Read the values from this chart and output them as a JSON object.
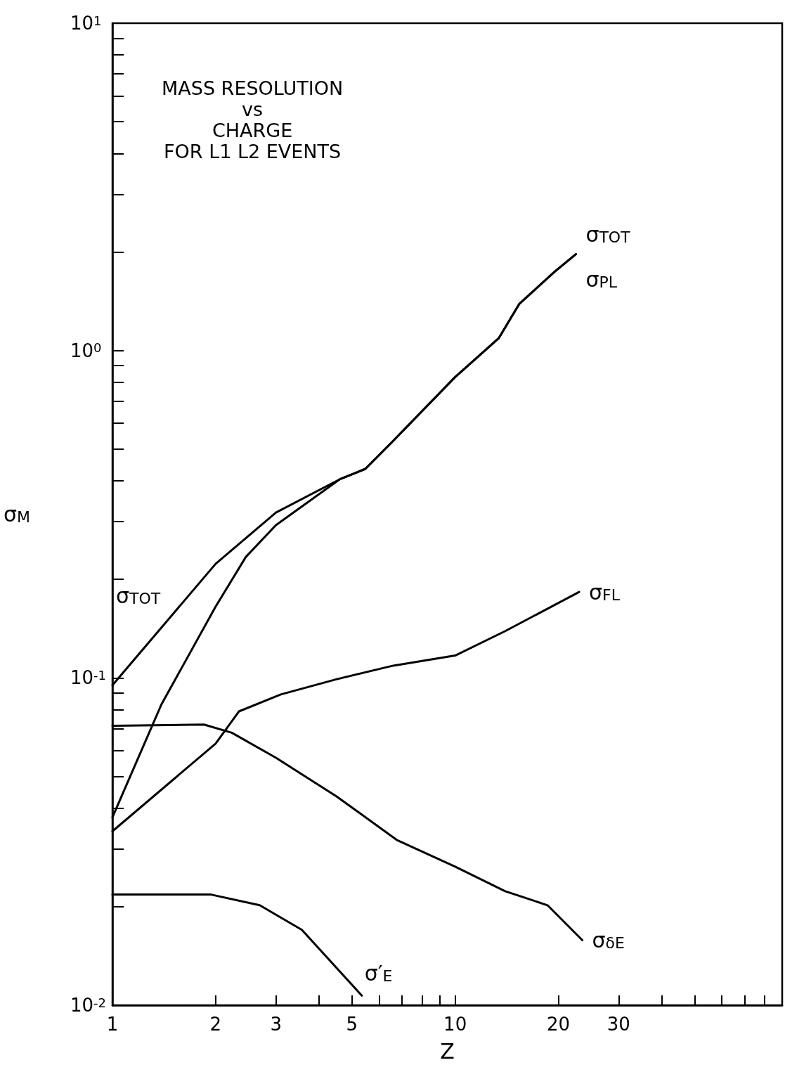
{
  "chart_data": {
    "type": "line",
    "title": "MASS RESOLUTION\nvs\nCHARGE\nFOR L1 L2 EVENTS",
    "xlabel": "Z",
    "ylabel": "σ$_{M}$",
    "log": "xy",
    "grid": false,
    "legend": false,
    "marker": "none",
    "line_style": "solid",
    "xlim": [
      1,
      90
    ],
    "ylim": [
      0.01,
      10
    ],
    "xticks": [
      1,
      2,
      3,
      {
        "value": 4,
        "label": null
      },
      5,
      {
        "value": 6,
        "label": null
      },
      {
        "value": 7,
        "label": null
      },
      {
        "value": 8,
        "label": null
      },
      {
        "value": 9,
        "label": null
      },
      10,
      20,
      30,
      {
        "value": 40,
        "label": null
      },
      {
        "value": 50,
        "label": null
      },
      {
        "value": 60,
        "label": null
      },
      {
        "value": 70,
        "label": null
      },
      {
        "value": 80,
        "label": null
      },
      {
        "value": 90,
        "label": null
      }
    ],
    "yticks": [
      {
        "value": 0.01,
        "label": "10$^{-2}$"
      },
      {
        "value": 0.02,
        "label": null
      },
      {
        "value": 0.03,
        "label": null
      },
      {
        "value": 0.04,
        "label": null
      },
      {
        "value": 0.05,
        "label": null
      },
      {
        "value": 0.06,
        "label": null
      },
      {
        "value": 0.07,
        "label": null
      },
      {
        "value": 0.08,
        "label": null
      },
      {
        "value": 0.09,
        "label": null
      },
      {
        "value": 0.1,
        "label": "10$^{-1}$"
      },
      {
        "value": 0.2,
        "label": null
      },
      {
        "value": 0.3,
        "label": null
      },
      {
        "value": 0.4,
        "label": null
      },
      {
        "value": 0.5,
        "label": null
      },
      {
        "value": 0.6,
        "label": null
      },
      {
        "value": 0.7,
        "label": null
      },
      {
        "value": 0.8,
        "label": null
      },
      {
        "value": 0.9,
        "label": null
      },
      {
        "value": 1,
        "label": "10$^{0}$"
      },
      {
        "value": 2,
        "label": null
      },
      {
        "value": 3,
        "label": null
      },
      {
        "value": 4,
        "label": null
      },
      {
        "value": 5,
        "label": null
      },
      {
        "value": 6,
        "label": null
      },
      {
        "value": 7,
        "label": null
      },
      {
        "value": 8,
        "label": null
      },
      {
        "value": 9,
        "label": null
      },
      {
        "value": 10,
        "label": "10$^{1}$"
      }
    ],
    "annotations": [
      "σ$_{TOT}$"
    ],
    "series": [
      {
        "name": "σ$_{TOT}$",
        "color": "#000000",
        "x": [
          1,
          2,
          3,
          4.6,
          5.47,
          6.6,
          10,
          13.4,
          15.4,
          19.5,
          22.5
        ],
        "values": [
          0.095,
          0.223,
          0.32,
          0.404,
          0.435,
          0.53,
          0.83,
          1.09,
          1.39,
          1.74,
          1.97
        ]
      },
      {
        "name": "σ$_{PL}$",
        "color": "#000000",
        "x": [
          1,
          1.39,
          2,
          2.45,
          3,
          4.6,
          5.47,
          6.6,
          10,
          13.4,
          15.4,
          19.5,
          22.5
        ],
        "values": [
          0.0375,
          0.083,
          0.165,
          0.234,
          0.293,
          0.404,
          0.435,
          0.53,
          0.83,
          1.09,
          1.39,
          1.74,
          1.97
        ]
      },
      {
        "name": "σ$_{FL}$",
        "color": "#000000",
        "x": [
          1,
          2,
          2.34,
          3.1,
          4.5,
          6.6,
          10,
          14,
          23
        ],
        "values": [
          0.034,
          0.063,
          0.079,
          0.089,
          0.099,
          0.109,
          0.117,
          0.139,
          0.183
        ]
      },
      {
        "name": "σ$_{δE}$",
        "color": "#000000",
        "x": [
          1,
          1.85,
          2.23,
          3,
          4.5,
          6.75,
          10,
          14,
          18.6,
          23.5
        ],
        "values": [
          0.0714,
          0.072,
          0.068,
          0.057,
          0.0435,
          0.032,
          0.0265,
          0.0223,
          0.0202,
          0.0158
        ]
      },
      {
        "name": "σ′$_{E}$",
        "color": "#000000",
        "x": [
          1,
          1.93,
          2.69,
          3.57,
          5.34
        ],
        "values": [
          0.0218,
          0.0218,
          0.0202,
          0.017,
          0.0107
        ]
      }
    ]
  }
}
